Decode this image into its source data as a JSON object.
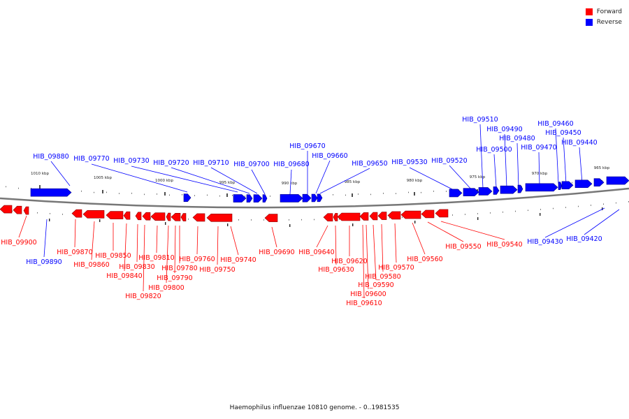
{
  "legend": {
    "forward": {
      "label": "Forward",
      "color": "#ff0000"
    },
    "reverse": {
      "label": "Reverse",
      "color": "#0000ff"
    }
  },
  "caption": "Haemophilus influenzae 10810 genome. - 0..1981535",
  "scale_labels": [
    "1010 kbp",
    "1005 kbp",
    "1000 kbp",
    "995 kbp",
    "990 kbp",
    "985 kbp",
    "980 kbp",
    "975 kbp",
    "970 kbp",
    "965 kbp"
  ],
  "reverse_genes": [
    "HIB_09880",
    "HIB_09890",
    "HIB_09770",
    "HIB_09730",
    "HIB_09720",
    "HIB_09710",
    "HIB_09700",
    "HIB_09680",
    "HIB_09670",
    "HIB_09660",
    "HIB_09650",
    "HIB_09530",
    "HIB_09520",
    "HIB_09510",
    "HIB_09500",
    "HIB_09490",
    "HIB_09480",
    "HIB_09470",
    "HIB_09460",
    "HIB_09450",
    "HIB_09440",
    "HIB_09430",
    "HIB_09420"
  ],
  "forward_genes": [
    "HIB_09900",
    "HIB_09870",
    "HIB_09860",
    "HIB_09850",
    "HIB_09840",
    "HIB_09830",
    "HIB_09820",
    "HIB_09810",
    "HIB_09800",
    "HIB_09790",
    "HIB_09780",
    "HIB_09760",
    "HIB_09750",
    "HIB_09740",
    "HIB_09690",
    "HIB_09640",
    "HIB_09630",
    "HIB_09620",
    "HIB_09610",
    "HIB_09600",
    "HIB_09590",
    "HIB_09580",
    "HIB_09570",
    "HIB_09560",
    "HIB_09550",
    "HIB_09540"
  ]
}
